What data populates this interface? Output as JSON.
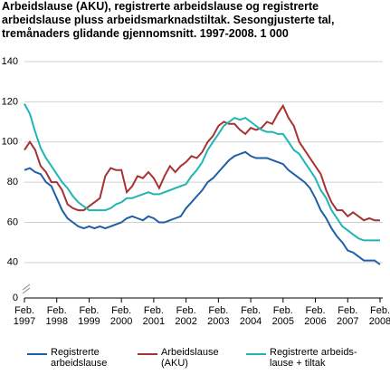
{
  "chart_data": {
    "type": "line",
    "title": "Arbeidslause (AKU), registrerte arbeidslause og registrerte arbeidslause pluss arbeidsmarknadstiltak. Sesongjusterte tal, tremånaders glidande gjennomsnitt. 1997-2008. 1 000",
    "categories": [
      "Feb. 1997",
      null,
      null,
      null,
      null,
      null,
      "Feb. 1998",
      null,
      null,
      null,
      null,
      null,
      "Feb. 1999",
      null,
      null,
      null,
      null,
      null,
      "Feb. 2000",
      null,
      null,
      null,
      null,
      null,
      "Feb. 2001",
      null,
      null,
      null,
      null,
      null,
      "Feb. 2002",
      null,
      null,
      null,
      null,
      null,
      "Feb. 2003",
      null,
      null,
      null,
      null,
      null,
      "Feb. 2004",
      null,
      null,
      null,
      null,
      null,
      "Feb. 2005",
      null,
      null,
      null,
      null,
      null,
      "Feb. 2006",
      null,
      null,
      null,
      null,
      null,
      "Feb. 2007",
      null,
      null,
      null,
      null,
      null,
      "Feb. 2008"
    ],
    "series": [
      {
        "name": "Registrerte arbeidslause",
        "color": "#1f5fa6",
        "values": [
          86,
          87,
          85,
          84,
          80,
          78,
          72,
          66,
          62,
          60,
          58,
          57,
          58,
          57,
          58,
          57,
          58,
          59,
          60,
          62,
          63,
          62,
          61,
          63,
          62,
          60,
          60,
          61,
          62,
          63,
          67,
          70,
          73,
          76,
          80,
          82,
          85,
          88,
          91,
          93,
          94,
          95,
          93,
          92,
          92,
          92,
          91,
          90,
          89,
          86,
          84,
          82,
          80,
          77,
          72,
          66,
          62,
          57,
          53,
          50,
          46,
          45,
          43,
          41,
          41,
          41,
          39
        ]
      },
      {
        "name": "Arbeidslause (AKU)",
        "color": "#a83232",
        "values": [
          96,
          100,
          96,
          88,
          85,
          80,
          80,
          76,
          69,
          67,
          66,
          66,
          68,
          70,
          72,
          83,
          87,
          86,
          86,
          75,
          78,
          83,
          82,
          85,
          82,
          77,
          83,
          88,
          85,
          88,
          90,
          93,
          92,
          95,
          100,
          103,
          108,
          110,
          109,
          109,
          106,
          104,
          107,
          106,
          107,
          110,
          109,
          114,
          118,
          112,
          108,
          100,
          96,
          92,
          88,
          84,
          76,
          70,
          66,
          66,
          63,
          65,
          63,
          61,
          62,
          61,
          61
        ]
      },
      {
        "name": "Registrerte arbeids-lause + tiltak",
        "color": "#1fb5b5",
        "values": [
          119,
          114,
          105,
          97,
          92,
          88,
          84,
          80,
          77,
          73,
          70,
          68,
          66,
          66,
          66,
          66,
          67,
          69,
          70,
          72,
          72,
          73,
          74,
          75,
          74,
          74,
          75,
          76,
          77,
          78,
          79,
          83,
          86,
          90,
          96,
          100,
          104,
          108,
          110,
          112,
          111,
          112,
          110,
          108,
          106,
          105,
          105,
          104,
          104,
          100,
          96,
          94,
          90,
          86,
          82,
          76,
          72,
          66,
          62,
          58,
          56,
          54,
          52,
          51,
          51,
          51,
          51
        ]
      }
    ],
    "ylim": [
      0,
      140
    ],
    "yticks": [
      0,
      40,
      60,
      80,
      100,
      120,
      140
    ],
    "axis_break": [
      0,
      30
    ],
    "grid": true
  }
}
